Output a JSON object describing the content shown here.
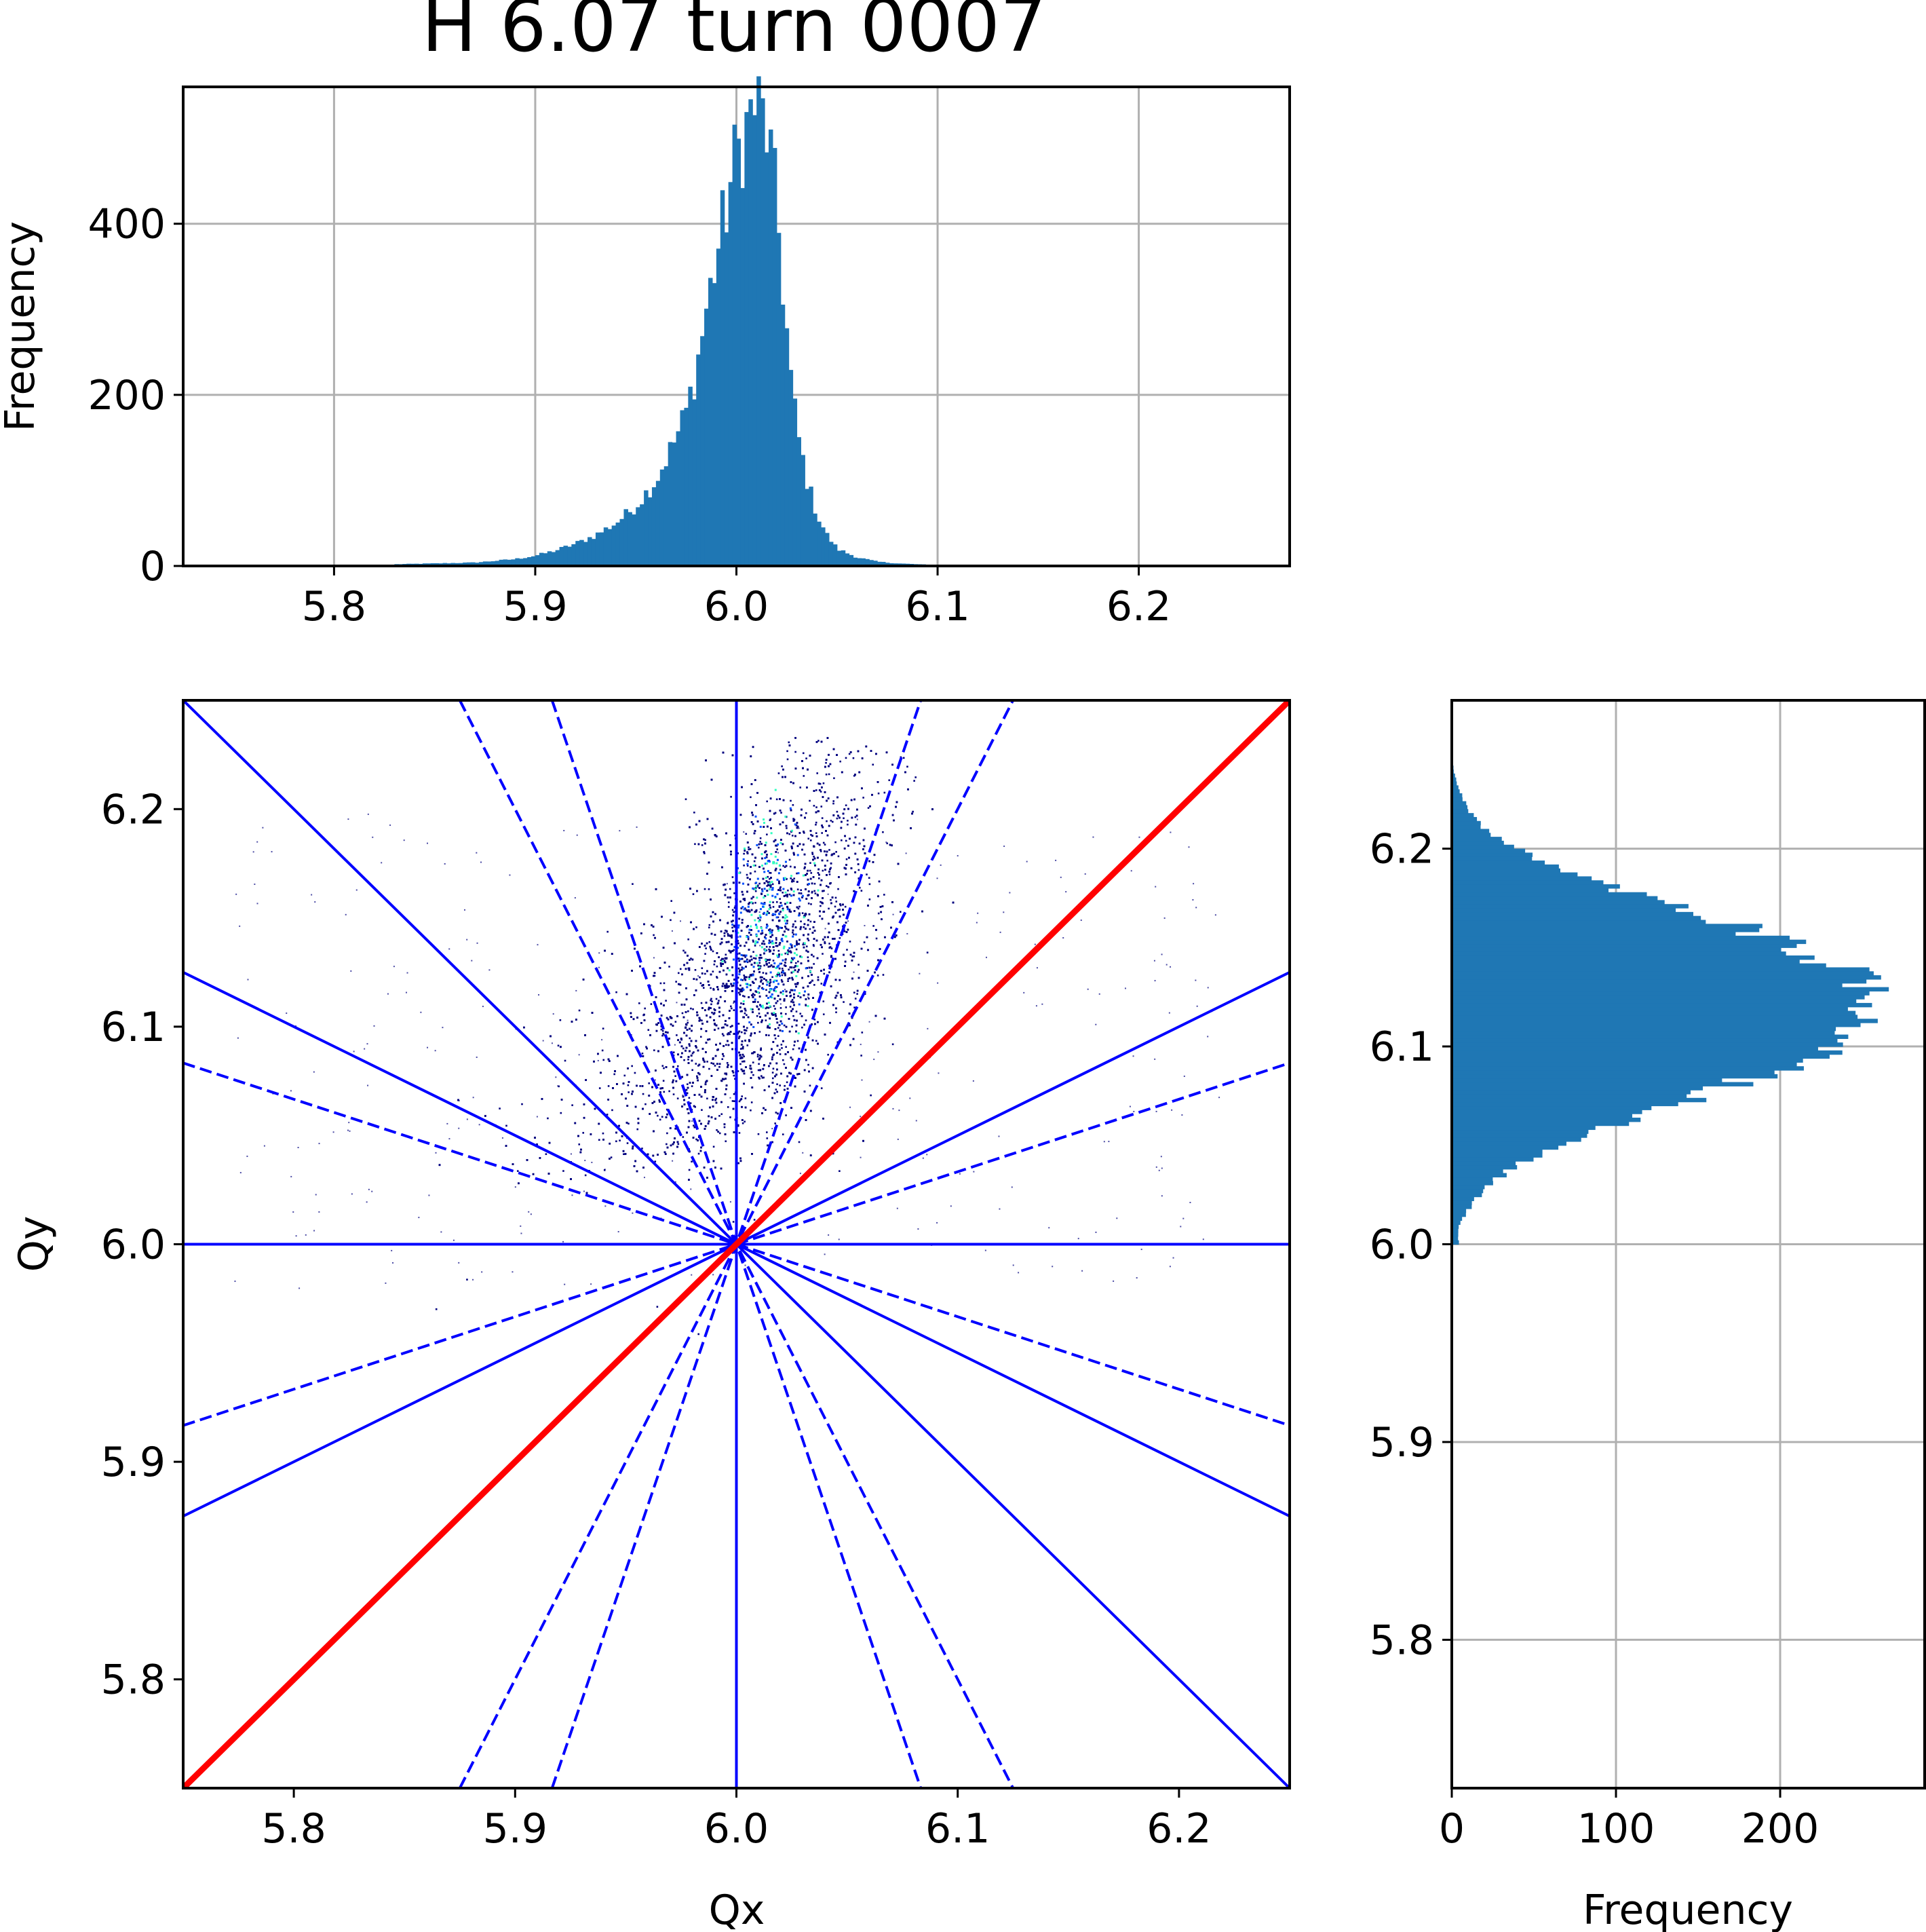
{
  "title": "H 6.07 turn 0007",
  "colors": {
    "hist": "#1f77b4",
    "resonance_line": "#0000ff",
    "diagonal": "#ff0000",
    "grid": "#b0b0b0",
    "density_low": "#00007f",
    "density_mid": "#0050ff",
    "density_high": "#30ffc0"
  },
  "chart_data": [
    {
      "id": "top_histogram",
      "type": "bar",
      "orientation": "vertical",
      "xlabel": "",
      "ylabel": "Frequency",
      "xlim": [
        5.725,
        6.275
      ],
      "ylim": [
        0,
        560
      ],
      "xticks": [
        "5.8",
        "5.9",
        "6.0",
        "6.1",
        "6.2"
      ],
      "yticks": [
        "0",
        "200",
        "400"
      ],
      "grid": true,
      "bin_width": 0.002,
      "x": [
        5.83,
        5.85,
        5.87,
        5.88,
        5.89,
        5.9,
        5.91,
        5.92,
        5.93,
        5.94,
        5.95,
        5.96,
        5.97,
        5.975,
        5.98,
        5.985,
        5.99,
        5.995,
        5.998,
        6.0,
        6.003,
        6.006,
        6.009,
        6.012,
        6.015,
        6.018,
        6.021,
        6.024,
        6.027,
        6.03,
        6.035,
        6.04,
        6.045,
        6.05,
        6.06,
        6.07,
        6.08,
        6.09,
        6.1,
        6.12
      ],
      "values": [
        2,
        3,
        4,
        6,
        8,
        12,
        18,
        26,
        36,
        50,
        70,
        100,
        150,
        180,
        230,
        300,
        360,
        420,
        460,
        480,
        500,
        520,
        540,
        530,
        510,
        460,
        390,
        300,
        220,
        160,
        100,
        60,
        36,
        20,
        10,
        5,
        3,
        2,
        1,
        0
      ]
    },
    {
      "id": "tune_diagram",
      "type": "scatter",
      "xlabel": "Qx",
      "ylabel": "Qy",
      "xlim": [
        5.75,
        6.25
      ],
      "ylim": [
        5.75,
        6.25
      ],
      "xticks": [
        "5.8",
        "5.9",
        "6.0",
        "6.1",
        "6.2"
      ],
      "yticks": [
        "5.8",
        "5.9",
        "6.0",
        "6.1",
        "6.2"
      ],
      "grid": false,
      "point_cloud": {
        "core_center": [
          6.015,
          6.135
        ],
        "core_sigma": [
          0.018,
          0.035
        ],
        "tail_direction": [
          -0.8,
          -0.6
        ],
        "upper_tip": [
          6.065,
          6.235
        ],
        "lower_tip": [
          5.985,
          6.05
        ],
        "peak_density_point": [
          6.015,
          6.145
        ]
      },
      "resonance_lines": [
        {
          "points": [
            [
              5.75,
              6.25
            ],
            [
              6.25,
              5.75
            ]
          ],
          "style": "solid"
        },
        {
          "points": [
            [
              6.0,
              5.75
            ],
            [
              6.0,
              6.25
            ]
          ],
          "style": "solid"
        },
        {
          "points": [
            [
              5.75,
              6.0
            ],
            [
              6.25,
              6.0
            ]
          ],
          "style": "solid"
        },
        {
          "points": [
            [
              5.75,
              6.125
            ],
            [
              6.25,
              5.875
            ]
          ],
          "style": "solid"
        },
        {
          "points": [
            [
              5.75,
              5.875
            ],
            [
              6.25,
              6.125
            ]
          ],
          "style": "solid"
        },
        {
          "points": [
            [
              5.75,
              6.0833
            ],
            [
              6.25,
              5.9167
            ]
          ],
          "style": "dashed"
        },
        {
          "points": [
            [
              5.75,
              5.9167
            ],
            [
              6.25,
              6.0833
            ]
          ],
          "style": "dashed"
        },
        {
          "points": [
            [
              5.875,
              6.25
            ],
            [
              6.125,
              5.75
            ]
          ],
          "style": "dashed"
        },
        {
          "points": [
            [
              5.9167,
              6.25
            ],
            [
              6.0833,
              5.75
            ]
          ],
          "style": "dashed"
        },
        {
          "points": [
            [
              5.875,
              5.75
            ],
            [
              6.125,
              6.25
            ]
          ],
          "style": "dashed"
        },
        {
          "points": [
            [
              5.9167,
              5.75
            ],
            [
              6.0833,
              6.25
            ]
          ],
          "style": "dashed"
        }
      ],
      "diagonal": {
        "points": [
          [
            5.75,
            5.75
          ],
          [
            6.25,
            6.25
          ]
        ],
        "style": "solid"
      }
    },
    {
      "id": "right_histogram",
      "type": "bar",
      "orientation": "horizontal",
      "xlabel": "Frequency",
      "ylabel": "",
      "xlim": [
        0,
        288
      ],
      "ylim": [
        5.725,
        6.275
      ],
      "xticks": [
        "0",
        "100",
        "200"
      ],
      "yticks": [
        "5.8",
        "5.9",
        "6.0",
        "6.1",
        "6.2"
      ],
      "grid": true,
      "bin_width": 0.002,
      "y": [
        6.01,
        6.02,
        6.03,
        6.04,
        6.05,
        6.06,
        6.07,
        6.08,
        6.09,
        6.1,
        6.11,
        6.12,
        6.13,
        6.14,
        6.15,
        6.16,
        6.17,
        6.18,
        6.19,
        6.2,
        6.21,
        6.22,
        6.23,
        6.24
      ],
      "values": [
        4,
        12,
        22,
        40,
        65,
        95,
        135,
        170,
        200,
        225,
        245,
        255,
        250,
        235,
        210,
        180,
        140,
        100,
        65,
        38,
        20,
        10,
        4,
        1
      ]
    }
  ]
}
